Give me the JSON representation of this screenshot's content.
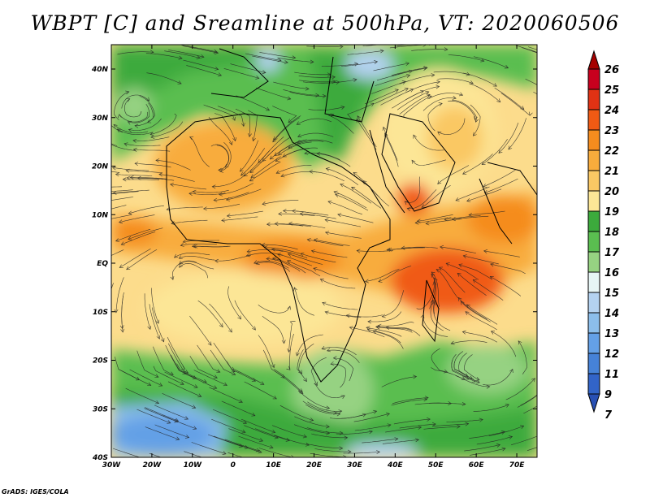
{
  "title": "WBPT [C] and Sreamline at 500hPa, VT: 2020060506",
  "credit": "GrADS: IGES/COLA",
  "map": {
    "lon_ticks": [
      "30W",
      "20W",
      "10W",
      "0",
      "10E",
      "20E",
      "30E",
      "40E",
      "50E",
      "60E",
      "70E"
    ],
    "lat_ticks": [
      "40N",
      "30N",
      "20N",
      "10N",
      "EQ",
      "10S",
      "20S",
      "30S",
      "40S"
    ]
  },
  "colorbar": {
    "levels": [
      "26",
      "25",
      "24",
      "23",
      "22",
      "21",
      "20",
      "19",
      "18",
      "17",
      "16",
      "15",
      "14",
      "13",
      "12",
      "11",
      "9",
      "7"
    ],
    "colors": [
      "#a50000",
      "#c8001e",
      "#e03214",
      "#f05a14",
      "#f58c1e",
      "#f8ac3c",
      "#fac864",
      "#fce696",
      "#3caa3c",
      "#5abe50",
      "#96d282",
      "#e6f5f5",
      "#b4d2f0",
      "#8cbeeb",
      "#64a0e6",
      "#4682d7",
      "#3264c8",
      "#2850b4"
    ]
  }
}
